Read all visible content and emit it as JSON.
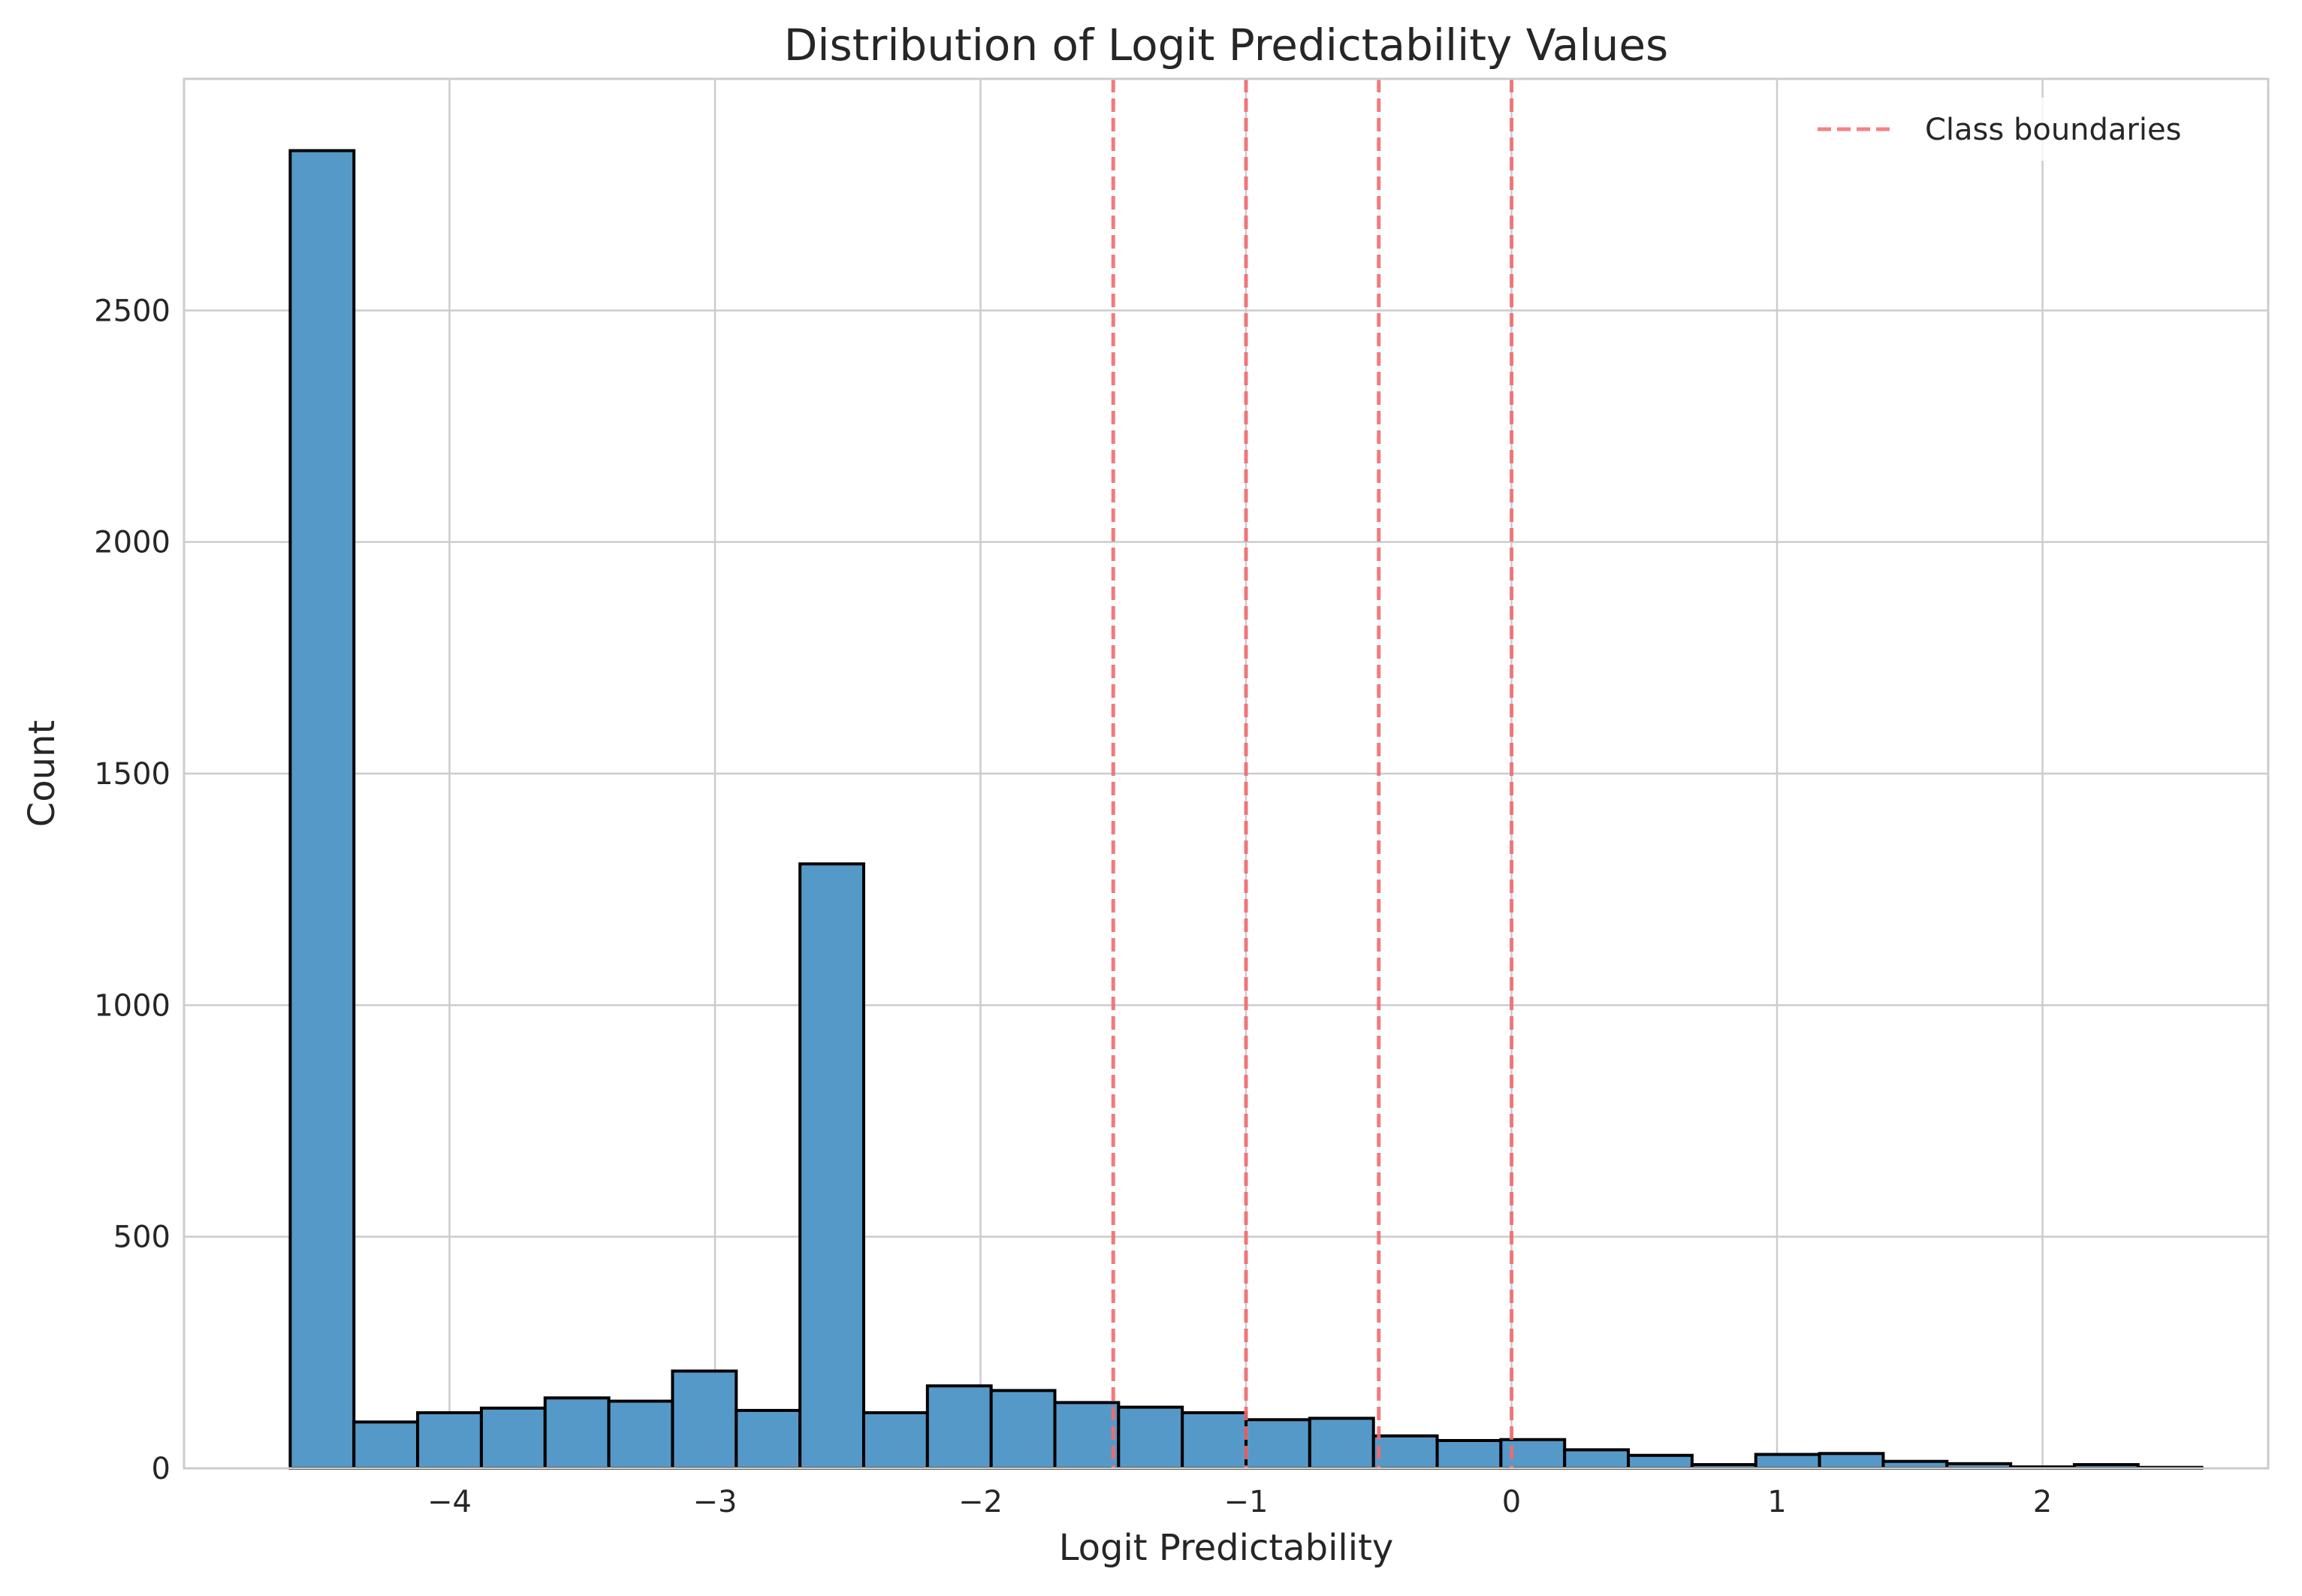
{
  "chart_data": {
    "type": "bar",
    "title": "Distribution of Logit Predictability Values",
    "xlabel": "Logit Predictability",
    "ylabel": "Count",
    "xlim": [
      -5.0,
      2.85
    ],
    "ylim": [
      0,
      3000
    ],
    "x_ticks": [
      -4,
      -3,
      -2,
      -1,
      0,
      1,
      2
    ],
    "x_tick_labels": [
      "−4",
      "−3",
      "−2",
      "−1",
      "0",
      "1",
      "2"
    ],
    "y_ticks": [
      0,
      500,
      1000,
      1500,
      2000,
      2500
    ],
    "y_tick_labels": [
      "0",
      "500",
      "1000",
      "1500",
      "2000",
      "2500"
    ],
    "bin_edges": [
      -4.6,
      -4.36,
      -4.12,
      -3.88,
      -3.64,
      -3.4,
      -3.16,
      -2.92,
      -2.68,
      -2.44,
      -2.2,
      -1.96,
      -1.72,
      -1.48,
      -1.24,
      -1.0,
      -0.76,
      -0.52,
      -0.28,
      -0.04,
      0.2,
      0.44,
      0.68,
      0.92,
      1.16,
      1.4,
      1.64,
      1.88,
      2.12,
      2.36,
      2.6
    ],
    "values": [
      2845,
      100,
      120,
      130,
      152,
      145,
      210,
      125,
      1305,
      120,
      178,
      168,
      142,
      132,
      120,
      105,
      108,
      70,
      60,
      62,
      40,
      28,
      8,
      30,
      32,
      15,
      10,
      3,
      8,
      2
    ],
    "bar_color": "#5599c8",
    "bar_edge_color": "#000000",
    "class_boundaries": [
      -1.5,
      -1.0,
      -0.5,
      0.0
    ],
    "boundary_color": "#f26b6e",
    "legend": {
      "label": "Class boundaries",
      "position": "upper-right"
    },
    "grid": true
  }
}
